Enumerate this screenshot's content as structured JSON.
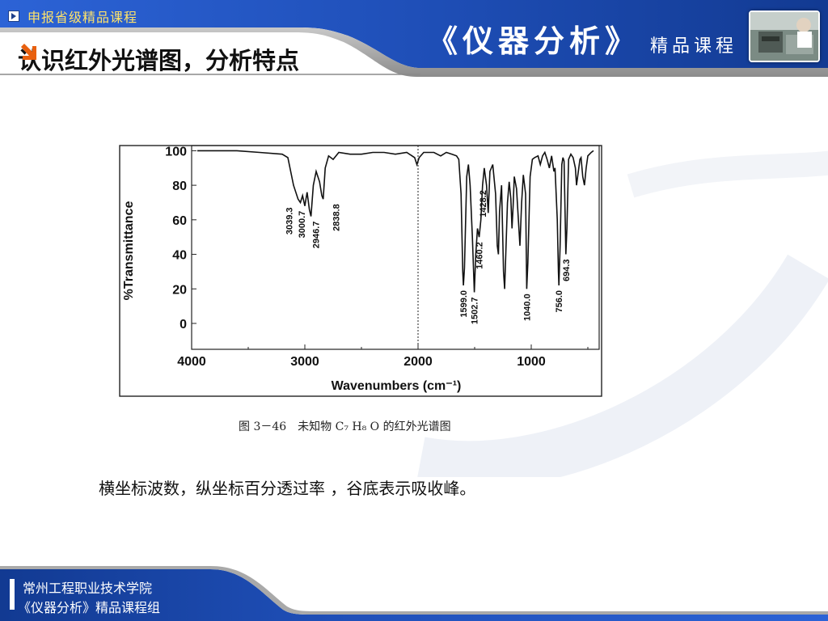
{
  "header": {
    "top_tag": "申报省级精品课程",
    "slide_title": "认识红外光谱图，分析特点",
    "brand_main": "《仪器分析》",
    "brand_sub": "精品课程",
    "colors": {
      "primary_blue": "#1e4fb5",
      "dark_blue": "#143a8c",
      "accent_yellow": "#ffe36a",
      "arrow_orange": "#e8600f"
    },
    "icons": [
      "play-icon",
      "arrow-down-right-icon",
      "lab-photo"
    ]
  },
  "figure": {
    "caption": "图 3－46　未知物 C₇ H₈ O 的红外光谱图"
  },
  "chart_data": {
    "type": "line",
    "title": "",
    "xlabel": "Wavenumbers (cm⁻¹)",
    "ylabel": "%Transmittance",
    "xlim": [
      4000,
      400
    ],
    "ylim": [
      -15,
      103
    ],
    "x_ticks": [
      4000,
      3000,
      2000,
      1000
    ],
    "y_ticks": [
      100,
      80,
      60,
      40,
      20,
      0
    ],
    "x_tick_labels": [
      "4000",
      "3000",
      "2000",
      "1000"
    ],
    "y_tick_labels": [
      "100",
      "80",
      "60",
      "40",
      "20",
      "0"
    ],
    "reference_line_x": 2000,
    "series": [
      {
        "values": [
          [
            3950,
            100
          ],
          [
            3800,
            100
          ],
          [
            3600,
            100
          ],
          [
            3400,
            99
          ],
          [
            3200,
            98
          ],
          [
            3150,
            96
          ],
          [
            3100,
            80
          ],
          [
            3060,
            72
          ],
          [
            3039,
            70
          ],
          [
            3020,
            74
          ],
          [
            3000,
            68
          ],
          [
            2980,
            76
          ],
          [
            2960,
            66
          ],
          [
            2946,
            62
          ],
          [
            2925,
            80
          ],
          [
            2900,
            88
          ],
          [
            2870,
            82
          ],
          [
            2850,
            74
          ],
          [
            2838,
            72
          ],
          [
            2820,
            90
          ],
          [
            2790,
            97
          ],
          [
            2750,
            95
          ],
          [
            2700,
            99
          ],
          [
            2600,
            98
          ],
          [
            2500,
            98
          ],
          [
            2400,
            99
          ],
          [
            2300,
            99
          ],
          [
            2200,
            98
          ],
          [
            2100,
            99
          ],
          [
            2030,
            96
          ],
          [
            2010,
            92
          ],
          [
            1990,
            96
          ],
          [
            1950,
            99
          ],
          [
            1900,
            99
          ],
          [
            1860,
            99
          ],
          [
            1800,
            97
          ],
          [
            1750,
            99
          ],
          [
            1700,
            98
          ],
          [
            1660,
            97
          ],
          [
            1640,
            95
          ],
          [
            1620,
            75
          ],
          [
            1605,
            30
          ],
          [
            1599,
            22
          ],
          [
            1590,
            32
          ],
          [
            1570,
            85
          ],
          [
            1555,
            92
          ],
          [
            1540,
            80
          ],
          [
            1520,
            50
          ],
          [
            1503,
            18
          ],
          [
            1490,
            40
          ],
          [
            1475,
            55
          ],
          [
            1460,
            50
          ],
          [
            1445,
            60
          ],
          [
            1430,
            80
          ],
          [
            1415,
            90
          ],
          [
            1395,
            80
          ],
          [
            1380,
            64
          ],
          [
            1365,
            88
          ],
          [
            1340,
            92
          ],
          [
            1315,
            75
          ],
          [
            1300,
            45
          ],
          [
            1290,
            40
          ],
          [
            1280,
            65
          ],
          [
            1262,
            80
          ],
          [
            1245,
            30
          ],
          [
            1235,
            20
          ],
          [
            1225,
            40
          ],
          [
            1210,
            70
          ],
          [
            1195,
            82
          ],
          [
            1180,
            72
          ],
          [
            1170,
            55
          ],
          [
            1160,
            68
          ],
          [
            1150,
            85
          ],
          [
            1130,
            78
          ],
          [
            1100,
            45
          ],
          [
            1085,
            70
          ],
          [
            1070,
            86
          ],
          [
            1050,
            75
          ],
          [
            1040,
            20
          ],
          [
            1030,
            35
          ],
          [
            1010,
            85
          ],
          [
            990,
            95
          ],
          [
            970,
            96
          ],
          [
            940,
            97
          ],
          [
            920,
            92
          ],
          [
            900,
            97
          ],
          [
            880,
            99
          ],
          [
            860,
            95
          ],
          [
            840,
            90
          ],
          [
            820,
            97
          ],
          [
            800,
            88
          ],
          [
            790,
            90
          ],
          [
            770,
            60
          ],
          [
            760,
            30
          ],
          [
            756,
            22
          ],
          [
            745,
            45
          ],
          [
            730,
            92
          ],
          [
            720,
            96
          ],
          [
            710,
            94
          ],
          [
            700,
            60
          ],
          [
            694,
            40
          ],
          [
            685,
            55
          ],
          [
            670,
            95
          ],
          [
            650,
            98
          ],
          [
            630,
            96
          ],
          [
            610,
            90
          ],
          [
            600,
            80
          ],
          [
            590,
            85
          ],
          [
            570,
            95
          ],
          [
            560,
            96
          ],
          [
            545,
            85
          ],
          [
            530,
            80
          ],
          [
            515,
            90
          ],
          [
            500,
            97
          ],
          [
            470,
            99
          ],
          [
            450,
            100
          ]
        ]
      }
    ],
    "peak_labels": [
      "3039.3",
      "3000.7",
      "2946.7",
      "2838.8",
      "1599.0",
      "1502.7",
      "1460.2",
      "1428.2",
      "1040.0",
      "756.0",
      "694.3"
    ],
    "grid": false
  },
  "body": {
    "text": "横坐标波数，纵坐标百分透过率 ，谷底表示吸收峰。"
  },
  "footer": {
    "line1": "常州工程职业技术学院",
    "line2": "《仪器分析》精品课程组"
  }
}
